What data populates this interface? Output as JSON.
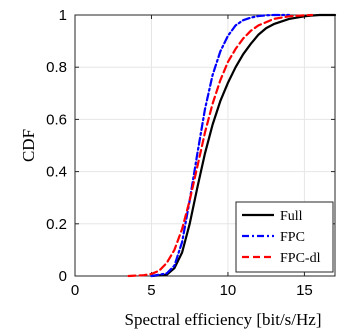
{
  "chart_data": {
    "type": "line",
    "title": "",
    "xlabel": "Spectral efficiency [bit/s/Hz]",
    "ylabel": "CDF",
    "xlim": [
      0,
      17
    ],
    "ylim": [
      0,
      1
    ],
    "xticks": [
      "0",
      "5",
      "10",
      "15"
    ],
    "yticks": [
      "0",
      "0.2",
      "0.4",
      "0.6",
      "0.8",
      "1"
    ],
    "grid": true,
    "legend_position": "bottom-right",
    "series": [
      {
        "name": "Full",
        "color": "#000000",
        "dash": "solid",
        "x": [
          5.0,
          6.0,
          6.5,
          7.0,
          7.5,
          8.0,
          8.5,
          9.0,
          9.5,
          10.0,
          10.5,
          11.0,
          11.5,
          12.0,
          12.5,
          13.0,
          14.0,
          15.0,
          15.5,
          16.0,
          17.0
        ],
        "y": [
          0.0,
          0.005,
          0.03,
          0.09,
          0.2,
          0.34,
          0.47,
          0.58,
          0.67,
          0.74,
          0.8,
          0.85,
          0.89,
          0.925,
          0.95,
          0.965,
          0.985,
          0.995,
          0.998,
          1.0,
          1.0
        ]
      },
      {
        "name": "FPC",
        "color": "#0000ff",
        "dash": "dashdot",
        "x": [
          5.0,
          6.0,
          6.5,
          7.0,
          7.5,
          8.0,
          8.5,
          9.0,
          9.5,
          10.0,
          10.5,
          11.0,
          11.5,
          12.0,
          12.5,
          13.0,
          14.0
        ],
        "y": [
          0.0,
          0.01,
          0.04,
          0.13,
          0.29,
          0.47,
          0.64,
          0.77,
          0.86,
          0.92,
          0.96,
          0.98,
          0.99,
          0.996,
          0.999,
          1.0,
          1.0
        ]
      },
      {
        "name": "FPC-dl",
        "color": "#ff0000",
        "dash": "dashed",
        "x": [
          3.5,
          4.5,
          5.0,
          5.5,
          6.0,
          6.5,
          7.0,
          7.5,
          8.0,
          8.5,
          9.0,
          9.5,
          10.0,
          10.5,
          11.0,
          11.5,
          12.0,
          13.0,
          14.0,
          15.0,
          15.5
        ],
        "y": [
          0.0,
          0.003,
          0.008,
          0.02,
          0.05,
          0.1,
          0.18,
          0.29,
          0.42,
          0.55,
          0.66,
          0.75,
          0.82,
          0.87,
          0.91,
          0.94,
          0.96,
          0.985,
          0.995,
          0.999,
          1.0
        ]
      }
    ]
  }
}
